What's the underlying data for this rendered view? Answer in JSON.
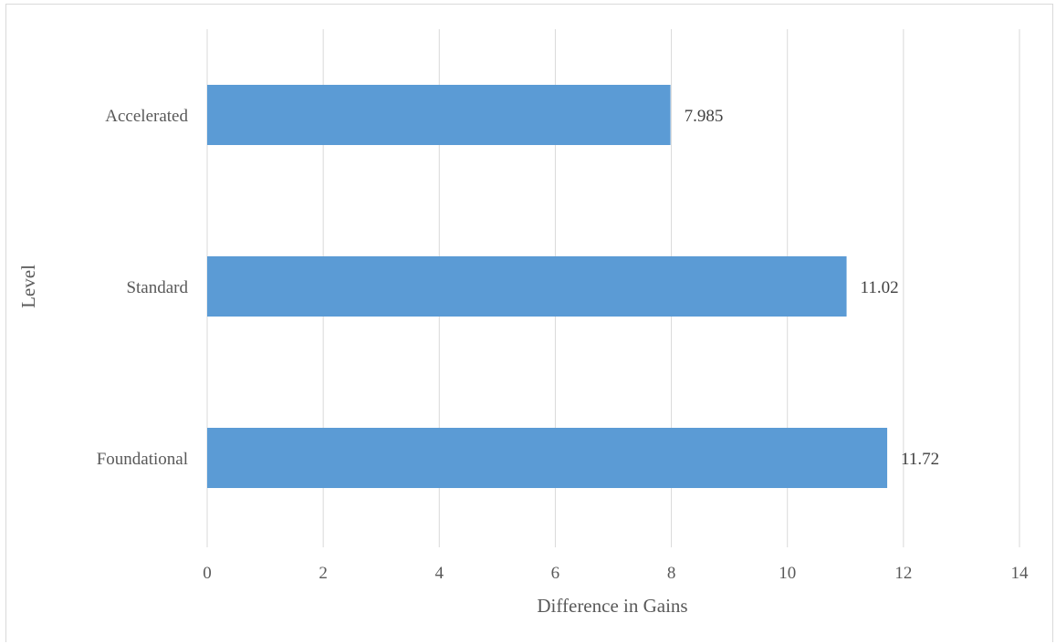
{
  "chart_data": {
    "type": "bar",
    "orientation": "horizontal",
    "categories": [
      "Accelerated",
      "Standard",
      "Foundational"
    ],
    "values": [
      7.985,
      11.02,
      11.72
    ],
    "data_labels": [
      "7.985",
      "11.02",
      "11.72"
    ],
    "xlabel": "Difference in Gains",
    "ylabel": "Level",
    "xlim": [
      0,
      14
    ],
    "x_ticks": [
      "0",
      "2",
      "4",
      "6",
      "8",
      "10",
      "12",
      "14"
    ],
    "grid": "vertical",
    "bar_color": "#5b9bd5",
    "legend": "none"
  }
}
